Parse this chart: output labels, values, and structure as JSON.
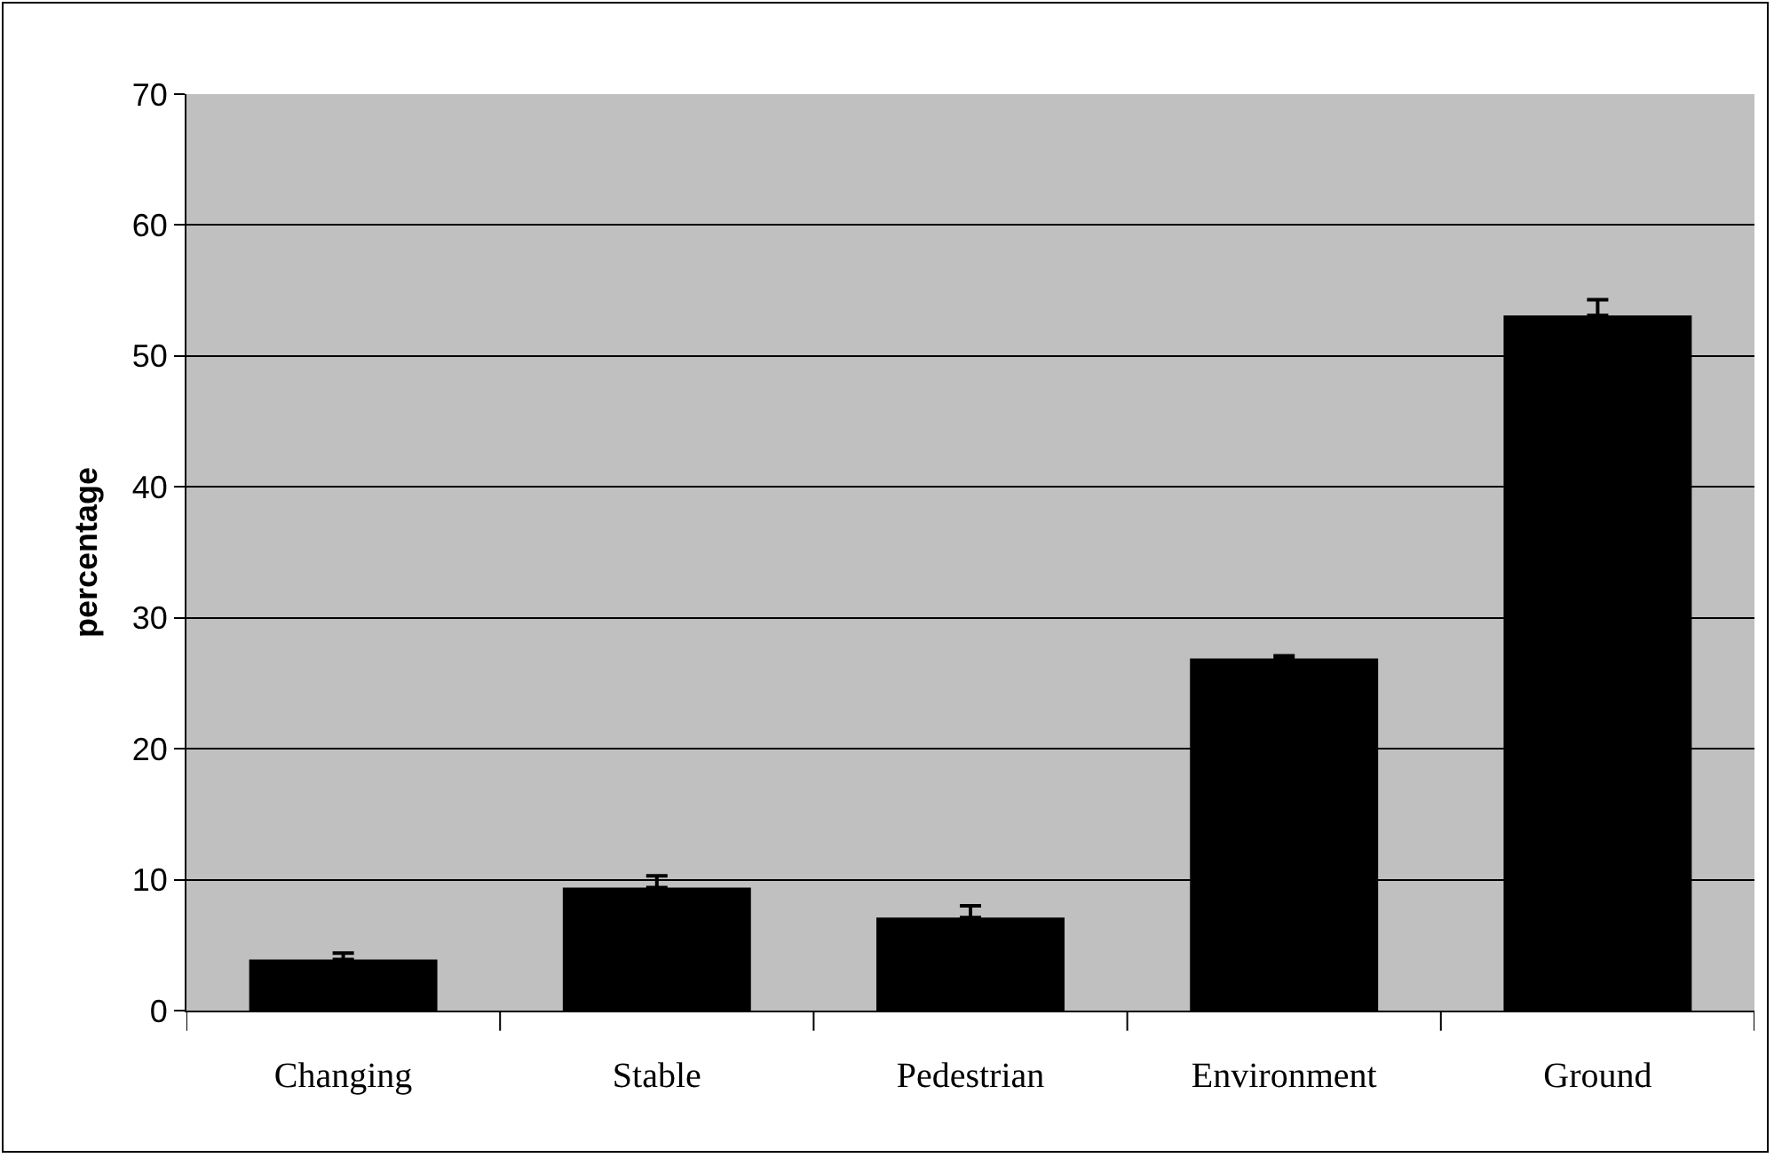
{
  "chart_data": {
    "type": "bar",
    "ylabel": "percentage",
    "categories": [
      "Changing",
      "Stable",
      "Pedestrian",
      "Environment",
      "Ground"
    ],
    "values": [
      3.9,
      9.4,
      7.1,
      26.9,
      53.1
    ],
    "errors": [
      [
        3.9,
        4.4
      ],
      [
        9.4,
        10.3
      ],
      [
        7.1,
        8.0
      ],
      [
        26.9,
        27.1
      ],
      [
        53.1,
        54.3
      ]
    ],
    "color": "#000000",
    "ylim": [
      0,
      70
    ],
    "yticks": [
      0,
      10,
      20,
      30,
      40,
      50,
      60,
      70
    ],
    "grid": "y"
  }
}
